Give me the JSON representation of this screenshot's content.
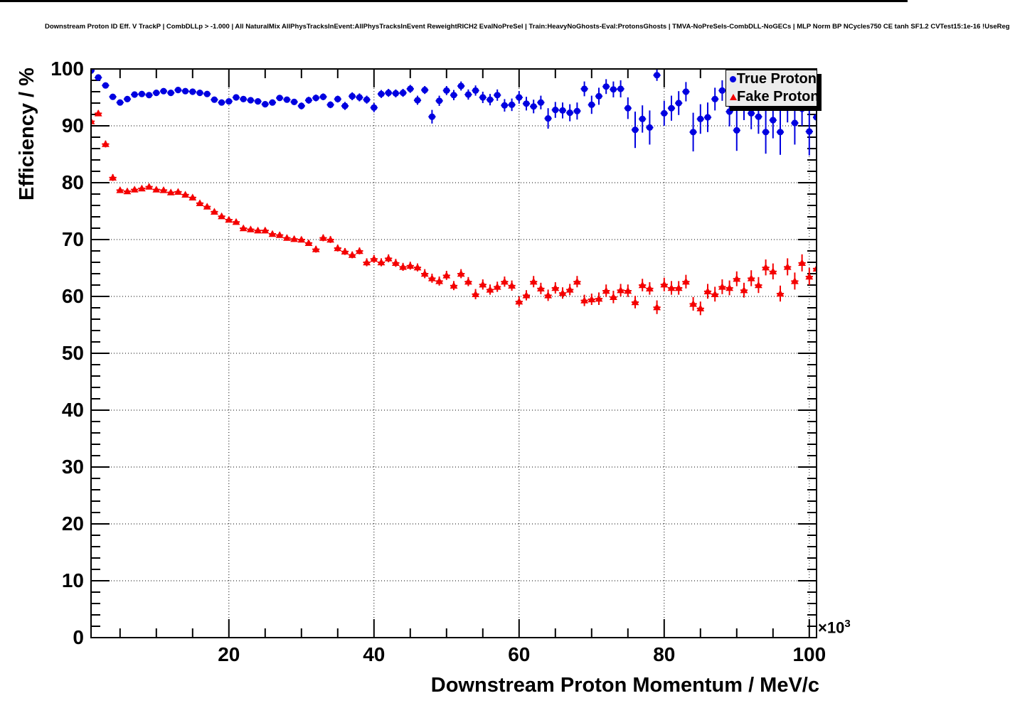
{
  "header": {
    "title": "Downstream Proton ID Eff. V TrackP | CombDLLp > -1.000 | All NaturalMix AllPhysTracksInEvent:AllPhysTracksInEvent ReweightRICH2 EvalNoPreSel | Train:HeavyNoGhosts-Eval:ProtonsGhosts | TMVA-NoPreSels-CombDLL-NoGECs | MLP Norm BP NCycles750 CE tanh SF1.2 CVTest15:1e-16 !UseReg"
  },
  "chart_data": {
    "type": "scatter",
    "title": "Downstream Proton ID Eff. V TrackP",
    "xlabel": "Downstream Proton Momentum / MeV/c",
    "ylabel": "Efficiency / %",
    "x_multiplier": {
      "base": "×10",
      "exp": "3"
    },
    "xlim": [
      1,
      101
    ],
    "ylim": [
      0,
      100
    ],
    "x_major_ticks": [
      20,
      40,
      60,
      80,
      100
    ],
    "x_minor_step": 5,
    "y_major_ticks": [
      0,
      10,
      20,
      30,
      40,
      50,
      60,
      70,
      80,
      90,
      100
    ],
    "y_minor_step": 2,
    "grid": "dotted",
    "legend": {
      "position": "top-right",
      "entries": [
        {
          "label": "True Proton",
          "marker": "circle",
          "color": "#0000e0"
        },
        {
          "label": "Fake Proton",
          "marker": "triangle",
          "color": "#f40000"
        }
      ]
    },
    "series": [
      {
        "name": "True Proton",
        "marker": "circle",
        "color": "#0000e0",
        "x_start": 1,
        "x_step": 1,
        "values": [
          99.7,
          98.5,
          97.1,
          95.1,
          94.1,
          94.7,
          95.5,
          95.6,
          95.4,
          95.8,
          96.1,
          95.8,
          96.3,
          96.1,
          96.0,
          95.8,
          95.6,
          94.6,
          94.1,
          94.3,
          95.0,
          94.7,
          94.5,
          94.3,
          93.8,
          94.1,
          94.9,
          94.6,
          94.2,
          93.5,
          94.5,
          94.9,
          95.1,
          93.7,
          94.7,
          93.5,
          95.2,
          95.0,
          94.6,
          93.2,
          95.6,
          95.8,
          95.7,
          95.8,
          96.5,
          94.5,
          96.3,
          91.6,
          94.4,
          96.2,
          95.4,
          97.0,
          95.5,
          96.2,
          95.0,
          94.6,
          95.4,
          93.6,
          93.7,
          95.0,
          93.9,
          93.4,
          94.1,
          91.3,
          92.8,
          92.7,
          92.3,
          92.6,
          96.5,
          93.7,
          95.2,
          96.9,
          96.4,
          96.5,
          93.1,
          89.3,
          91.2,
          89.7,
          98.9,
          92.2,
          93.1,
          94.0,
          96.0,
          88.9,
          91.2,
          91.5,
          94.7,
          96.2,
          92.5,
          89.2,
          93.4,
          92.2,
          91.6,
          88.9,
          91.0,
          88.9,
          93.4,
          90.5,
          93.0,
          89.0,
          91.5
        ],
        "errors": [
          0.3,
          0.5,
          0.5,
          0.5,
          0.5,
          0.4,
          0.4,
          0.3,
          0.3,
          0.3,
          0.3,
          0.3,
          0.3,
          0.3,
          0.3,
          0.3,
          0.4,
          0.4,
          0.4,
          0.4,
          0.4,
          0.4,
          0.5,
          0.5,
          0.5,
          0.5,
          0.5,
          0.5,
          0.5,
          0.6,
          0.6,
          0.6,
          0.6,
          0.6,
          0.6,
          0.7,
          0.7,
          0.7,
          0.7,
          0.8,
          0.7,
          0.7,
          0.7,
          0.7,
          0.7,
          0.8,
          0.7,
          1.2,
          0.9,
          0.8,
          0.9,
          0.8,
          0.9,
          0.9,
          1.0,
          1.0,
          1.0,
          1.1,
          1.1,
          1.1,
          1.2,
          1.2,
          1.2,
          1.8,
          1.4,
          1.4,
          1.5,
          1.5,
          1.3,
          1.6,
          1.5,
          1.3,
          1.4,
          1.5,
          1.9,
          3.2,
          2.4,
          3.0,
          1.0,
          2.2,
          2.2,
          2.1,
          1.7,
          3.4,
          2.6,
          2.6,
          2.0,
          1.8,
          2.6,
          3.6,
          2.4,
          2.8,
          3.0,
          3.8,
          3.2,
          4.0,
          2.8,
          3.8,
          3.0,
          4.2,
          3.5
        ]
      },
      {
        "name": "Fake Proton",
        "marker": "triangle",
        "color": "#f40000",
        "x_start": 1,
        "x_step": 1,
        "values": [
          90.8,
          92.2,
          86.8,
          80.9,
          78.7,
          78.5,
          78.8,
          79.0,
          79.3,
          78.8,
          78.7,
          78.3,
          78.4,
          77.9,
          77.4,
          76.4,
          75.8,
          74.9,
          74.1,
          73.5,
          73.1,
          72.0,
          71.8,
          71.6,
          71.6,
          71.0,
          70.8,
          70.3,
          70.1,
          70.0,
          69.4,
          68.3,
          70.3,
          70.0,
          68.5,
          67.9,
          67.3,
          68.0,
          66.0,
          66.6,
          66.0,
          66.7,
          65.9,
          65.2,
          65.4,
          65.1,
          64.0,
          63.2,
          62.7,
          63.7,
          61.9,
          64.0,
          62.6,
          60.4,
          62.1,
          61.2,
          61.7,
          62.6,
          61.9,
          59.1,
          60.2,
          62.6,
          61.4,
          60.2,
          61.5,
          60.6,
          61.2,
          62.6,
          59.3,
          59.5,
          59.6,
          61.0,
          59.9,
          61.1,
          61.0,
          59.0,
          62.0,
          61.4,
          58.1,
          62.1,
          61.5,
          61.5,
          62.6,
          58.7,
          57.9,
          60.9,
          60.4,
          61.7,
          61.5,
          63.1,
          61.1,
          63.2,
          62.0,
          65.1,
          64.4,
          60.5,
          65.2,
          62.7,
          65.9,
          63.5,
          64.9
        ],
        "errors": [
          0.5,
          0.5,
          0.6,
          0.6,
          0.4,
          0.4,
          0.3,
          0.3,
          0.3,
          0.3,
          0.3,
          0.3,
          0.3,
          0.3,
          0.3,
          0.3,
          0.4,
          0.4,
          0.4,
          0.4,
          0.4,
          0.4,
          0.4,
          0.4,
          0.5,
          0.5,
          0.5,
          0.5,
          0.5,
          0.5,
          0.5,
          0.6,
          0.6,
          0.6,
          0.6,
          0.6,
          0.6,
          0.6,
          0.7,
          0.7,
          0.7,
          0.7,
          0.7,
          0.7,
          0.7,
          0.7,
          0.8,
          0.8,
          0.8,
          0.8,
          0.8,
          0.8,
          0.8,
          0.9,
          0.9,
          0.9,
          0.9,
          0.9,
          0.9,
          0.9,
          0.9,
          1.0,
          1.0,
          1.0,
          1.0,
          1.0,
          1.0,
          1.0,
          1.0,
          1.0,
          1.1,
          1.1,
          1.1,
          1.1,
          1.1,
          1.1,
          1.1,
          1.1,
          1.2,
          1.2,
          1.2,
          1.2,
          1.2,
          1.2,
          1.2,
          1.3,
          1.3,
          1.3,
          1.3,
          1.3,
          1.3,
          1.4,
          1.4,
          1.4,
          1.4,
          1.4,
          1.5,
          1.5,
          1.5,
          1.5,
          1.5
        ]
      }
    ]
  }
}
